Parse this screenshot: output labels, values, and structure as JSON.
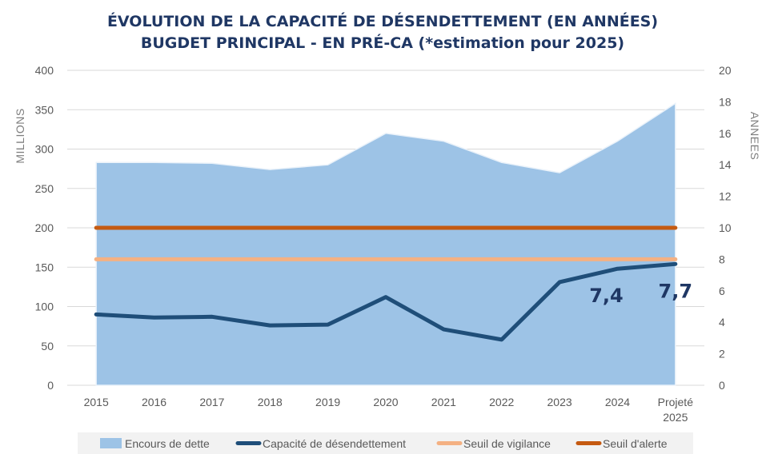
{
  "chart_data": {
    "type": "area",
    "title": "ÉVOLUTION DE LA CAPACITÉ DE DÉSENDETTEMENT (EN ANNÉES)",
    "subtitle": "BUGDET PRINCIPAL - EN PRÉ-CA (*estimation pour 2025)",
    "categories": [
      [
        "2015"
      ],
      [
        "2016"
      ],
      [
        "2017"
      ],
      [
        "2018"
      ],
      [
        "2019"
      ],
      [
        "2020"
      ],
      [
        "2021"
      ],
      [
        "2022"
      ],
      [
        "2023"
      ],
      [
        "2024"
      ],
      [
        "Projeté",
        "2025"
      ]
    ],
    "y_left": {
      "label": "MILLIONS",
      "min": 0,
      "max": 400,
      "step": 50,
      "ticks": [
        "0",
        "50",
        "100",
        "150",
        "200",
        "250",
        "300",
        "350",
        "400"
      ]
    },
    "y_right": {
      "label": "ANNEES",
      "min": 0,
      "max": 20,
      "step": 2,
      "ticks": [
        "0",
        "2",
        "4",
        "6",
        "8",
        "10",
        "12",
        "14",
        "16",
        "18",
        "20"
      ]
    },
    "grid": true,
    "legend_position": "bottom",
    "series": [
      {
        "name": "Encours de dette",
        "type": "area",
        "axis": "left",
        "color": "#9dc3e6",
        "values": [
          283,
          283,
          282,
          274,
          280,
          320,
          310,
          283,
          270,
          310,
          358
        ]
      },
      {
        "name": "Capacité de désendettement",
        "type": "line",
        "axis": "right",
        "color": "#1f4e79",
        "values": [
          4.5,
          4.3,
          4.35,
          3.8,
          3.85,
          5.6,
          3.55,
          2.9,
          6.55,
          7.4,
          7.7
        ]
      },
      {
        "name": "Seuil de vigilance",
        "type": "line",
        "axis": "right",
        "color": "#f4b183",
        "values": [
          8,
          8,
          8,
          8,
          8,
          8,
          8,
          8,
          8,
          8,
          8
        ]
      },
      {
        "name": "Seuil d'alerte",
        "type": "line",
        "axis": "right",
        "color": "#c55a11",
        "values": [
          10,
          10,
          10,
          10,
          10,
          10,
          10,
          10,
          10,
          10,
          10
        ]
      }
    ],
    "annotations": [
      {
        "series": "Capacité de désendettement",
        "index": 9,
        "text": "7,4"
      },
      {
        "series": "Capacité de désendettement",
        "index": 10,
        "text": "7,7"
      }
    ]
  }
}
